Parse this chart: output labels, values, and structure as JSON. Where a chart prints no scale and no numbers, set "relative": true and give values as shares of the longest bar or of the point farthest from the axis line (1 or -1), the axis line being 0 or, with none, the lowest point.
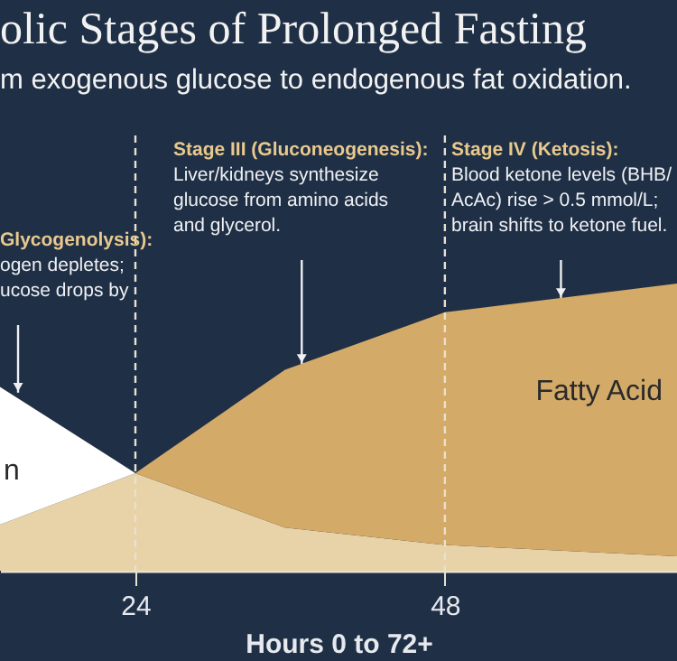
{
  "chart_data": {
    "type": "area",
    "stacked": true,
    "relative": true,
    "title": "olic Stages of Prolonged Fasting",
    "subtitle": "m exogenous glucose to endogenous fat oxidation.",
    "xlabel": "Hours 0 to 72+",
    "x": [
      13.5,
      24,
      35.6,
      48,
      66
    ],
    "xlim": [
      13.5,
      66
    ],
    "xticks": [
      24,
      48
    ],
    "series": [
      {
        "color": "#e8d3a8",
        "values": [
          0.16,
          0.34,
          0.15,
          0.09,
          0.05
        ]
      },
      {
        "name": "n",
        "color": "#ffffff",
        "values": [
          0.48,
          0,
          null,
          null,
          null
        ]
      },
      {
        "name": "Fatty Acid",
        "color": "#d3aa68",
        "values": [
          null,
          0,
          0.55,
          0.81,
          0.95
        ]
      }
    ],
    "ref_lines": [
      {
        "axis": "x",
        "value": 24,
        "color": "#e8e0d0",
        "line_style": "dashed"
      },
      {
        "axis": "x",
        "value": 48,
        "color": "#e8e0d0",
        "line_style": "dashed"
      }
    ],
    "annotations": [
      {
        "text": "Glycogenolysis):\nogen depletes;\nucose drops by",
        "x": 14.9,
        "y": 0.62
      },
      {
        "text": "Stage III (Gluconeogenesis):\nLiver/kidneys synthesize\nglucose from amino acids\nand glycerol.",
        "x": 36.9,
        "y": 0.72
      },
      {
        "text": "Stage IV (Ketosis):\nBlood ketone levels (BHB/\nAcAc) rise > 0.5 mmol/L;\nbrain shifts to ketone fuel.",
        "x": 57,
        "y": 0.95
      }
    ],
    "grid": false
  }
}
